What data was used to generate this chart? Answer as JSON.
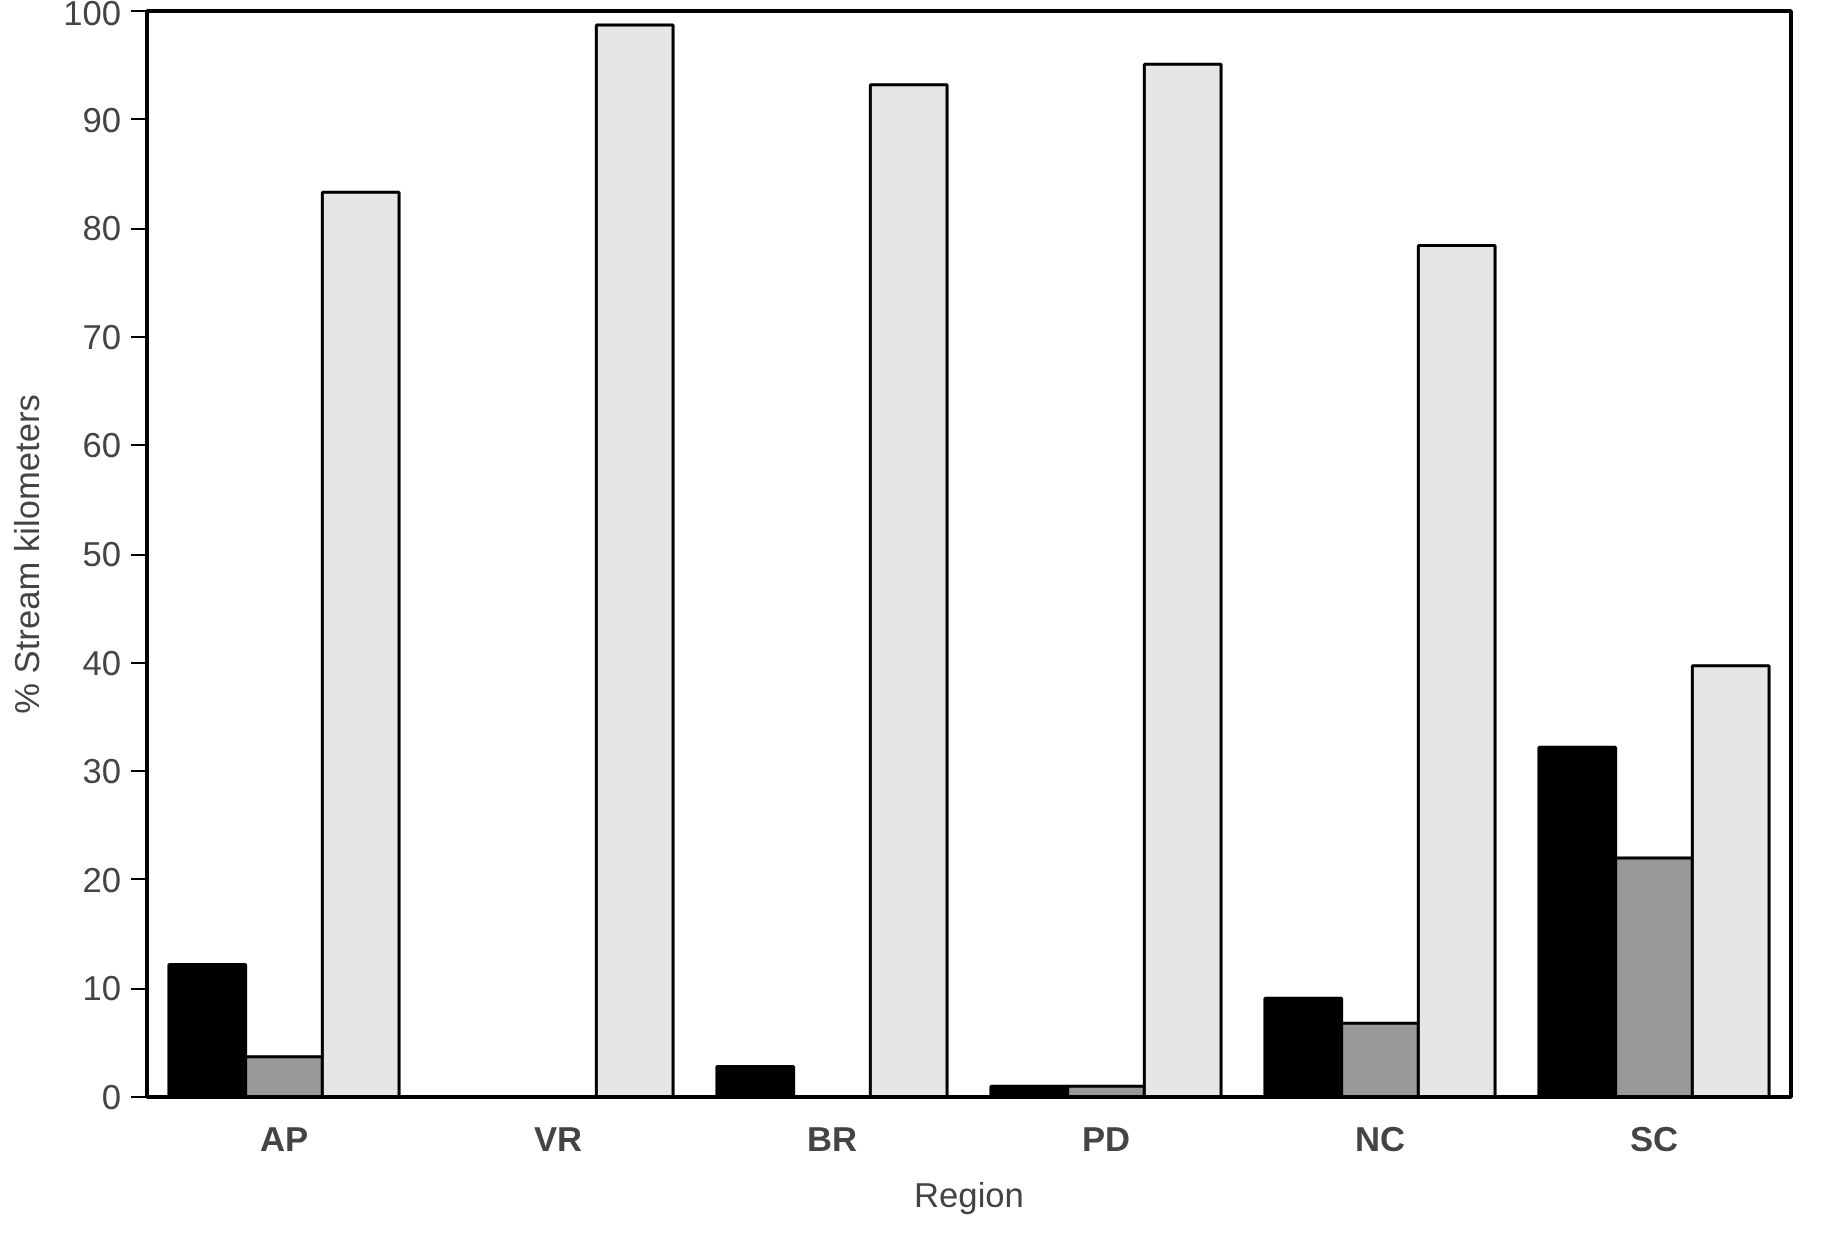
{
  "chart_data": {
    "type": "bar",
    "xlabel": "Region",
    "ylabel": "% Stream kilometers",
    "categories": [
      "AP",
      "VR",
      "BR",
      "PD",
      "NC",
      "SC"
    ],
    "series": [
      {
        "color": "#000000",
        "values": [
          12.2,
          0,
          2.8,
          1,
          9.1,
          32.2
        ]
      },
      {
        "color": "#999999",
        "values": [
          3.7,
          0,
          0,
          1,
          6.8,
          22
        ]
      },
      {
        "color": "#e6e6e6",
        "values": [
          83.3,
          98.7,
          93.2,
          95.1,
          78.4,
          39.7
        ]
      }
    ],
    "ylim": [
      0,
      100
    ],
    "yticks": [
      0,
      10,
      20,
      30,
      40,
      50,
      60,
      70,
      80,
      90,
      100
    ],
    "grid": false
  }
}
